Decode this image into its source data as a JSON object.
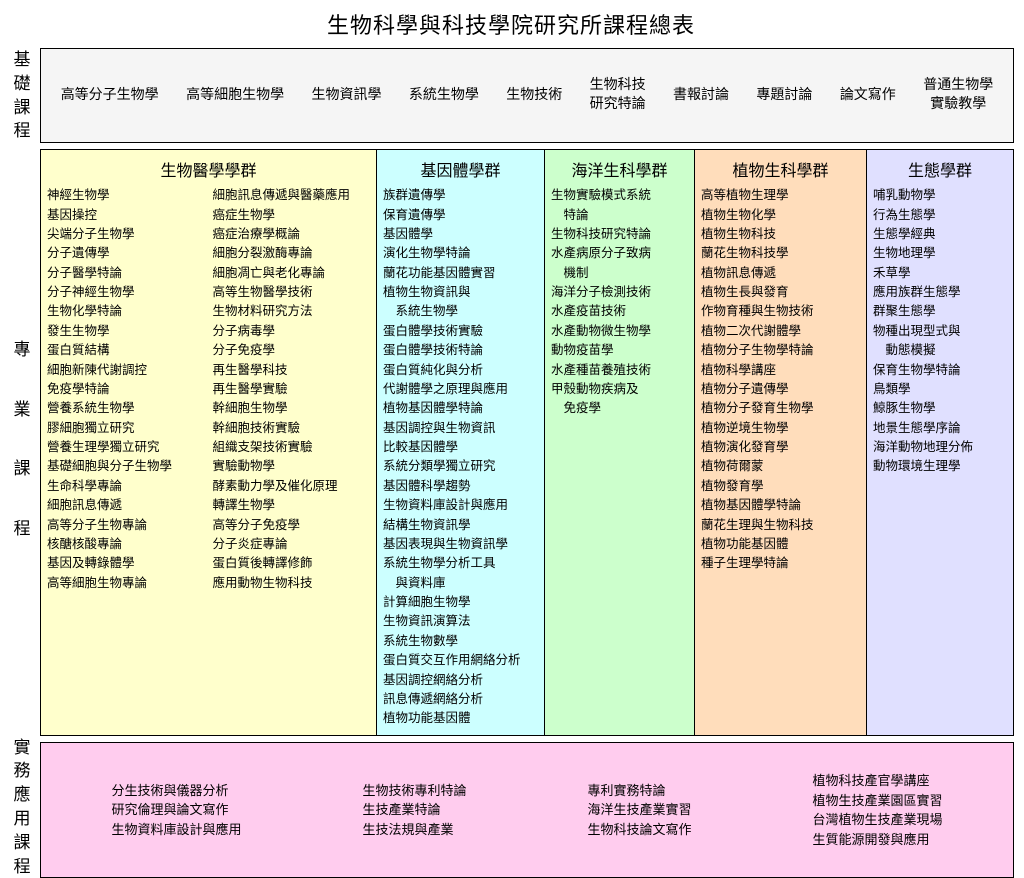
{
  "title": "生物科學與科技學院研究所課程總表",
  "sidebar": {
    "basic": "基礎課程",
    "professional": "專業課程",
    "practical": "實務應用課程"
  },
  "basic_row": {
    "background": "#f5f5f5",
    "items": [
      "高等分子生物學",
      "高等細胞生物學",
      "生物資訊學",
      "系統生物學",
      "生物技術",
      "生物科技\n研究特論",
      "書報討論",
      "專題討論",
      "論文寫作",
      "普通生物學\n實驗教學"
    ]
  },
  "groups": [
    {
      "name": "生物醫學學群",
      "bg": "#ffffcc",
      "items": [
        "神經生物學",
        "基因操控",
        "尖端分子生物學",
        "分子遺傳學",
        "分子醫學特論",
        "分子神經生物學",
        "生物化學特論",
        "發生生物學",
        "蛋白質結構",
        "細胞新陳代謝調控",
        "免疫學特論",
        "營養系統生物學",
        "膠細胞獨立研究",
        "營養生理學獨立研究",
        "基礎細胞與分子生物學",
        "生命科學專論",
        "細胞訊息傳遞",
        "高等分子生物專論",
        "核醣核酸專論",
        "基因及轉錄體學",
        "高等細胞生物專論",
        "細胞訊息傳遞與醫藥應用",
        "癌症生物學",
        "癌症治療學概論",
        "細胞分裂激酶專論",
        "細胞凋亡與老化專論",
        "高等生物醫學技術",
        "生物材料研究方法",
        "分子病毒學",
        "分子免疫學",
        "再生醫學科技",
        "再生醫學實驗",
        "幹細胞生物學",
        "幹細胞技術實驗",
        "組織支架技術實驗",
        "實驗動物學",
        "酵素動力學及催化原理",
        "轉譯生物學",
        "高等分子免疫學",
        "分子炎症專論",
        "蛋白質後轉譯修飾",
        "應用動物生物科技"
      ]
    },
    {
      "name": "基因體學群",
      "bg": "#ccffff",
      "items": [
        "族群遺傳學",
        "保育遺傳學",
        "基因體學",
        "演化生物學特論",
        "蘭花功能基因體實習",
        "植物生物資訊與\n    系統生物學",
        "蛋白體學技術實驗",
        "蛋白體學技術特論",
        "蛋白質純化與分析",
        "代謝體學之原理與應用",
        "植物基因體學特論",
        "基因調控與生物資訊",
        "比較基因體學",
        "系統分類學獨立研究",
        "基因體科學趨勢",
        "生物資料庫設計與應用",
        "結構生物資訊學",
        "基因表現與生物資訊學",
        "系統生物學分析工具\n    與資料庫",
        "計算細胞生物學",
        "生物資訊演算法",
        "系統生物數學",
        "蛋白質交互作用網絡分析",
        "基因調控網絡分析",
        "訊息傳遞網絡分析",
        "植物功能基因體"
      ]
    },
    {
      "name": "海洋生科學群",
      "bg": "#ccffcc",
      "items": [
        "生物實驗模式系統\n    特論",
        "生物科技研究特論",
        "水產病原分子致病\n    機制",
        "海洋分子檢測技術",
        "水產疫苗技術",
        "水產動物微生物學",
        "動物疫苗學",
        "水產種苗養殖技術",
        "甲殼動物疾病及\n    免疫學"
      ]
    },
    {
      "name": "植物生科學群",
      "bg": "#ffddbb",
      "items": [
        "高等植物生理學",
        "植物生物化學",
        "植物生物科技",
        "蘭花生物科技學",
        "植物訊息傳遞",
        "植物生長與發育",
        "作物育種與生物技術",
        "植物二次代謝體學",
        "植物分子生物學特論",
        "植物科學講座",
        "植物分子遺傳學",
        "植物分子發育生物學",
        "植物逆境生物學",
        "植物演化發育學",
        "植物荷爾蒙",
        "植物發育學",
        "植物基因體學特論",
        "蘭花生理與生物科技",
        "植物功能基因體",
        "種子生理學特論"
      ]
    },
    {
      "name": "生態學群",
      "bg": "#e0e0ff",
      "items": [
        "哺乳動物學",
        "行為生態學",
        "生態學經典",
        "生物地理學",
        "禾草學",
        "應用族群生態學",
        "群聚生態學",
        "物種出現型式與\n    動態模擬",
        "保育生物學特論",
        "鳥類學",
        "鯨豚生物學",
        "地景生態學序論",
        "海洋動物地理分佈",
        "動物環境生理學"
      ]
    }
  ],
  "practical_row": {
    "background": "#ffccee",
    "columns": [
      [
        "分生技術與儀器分析",
        "研究倫理與論文寫作",
        "生物資料庫設計與應用"
      ],
      [
        "生物技術專利特論",
        "生技產業特論",
        "生技法規與產業"
      ],
      [
        "專利實務特論",
        "海洋生技產業實習",
        "生物科技論文寫作"
      ],
      [
        "植物科技產官學講座",
        "植物生技產業園區實習",
        "台灣植物生技產業現場",
        "生質能源開發與應用"
      ]
    ]
  }
}
